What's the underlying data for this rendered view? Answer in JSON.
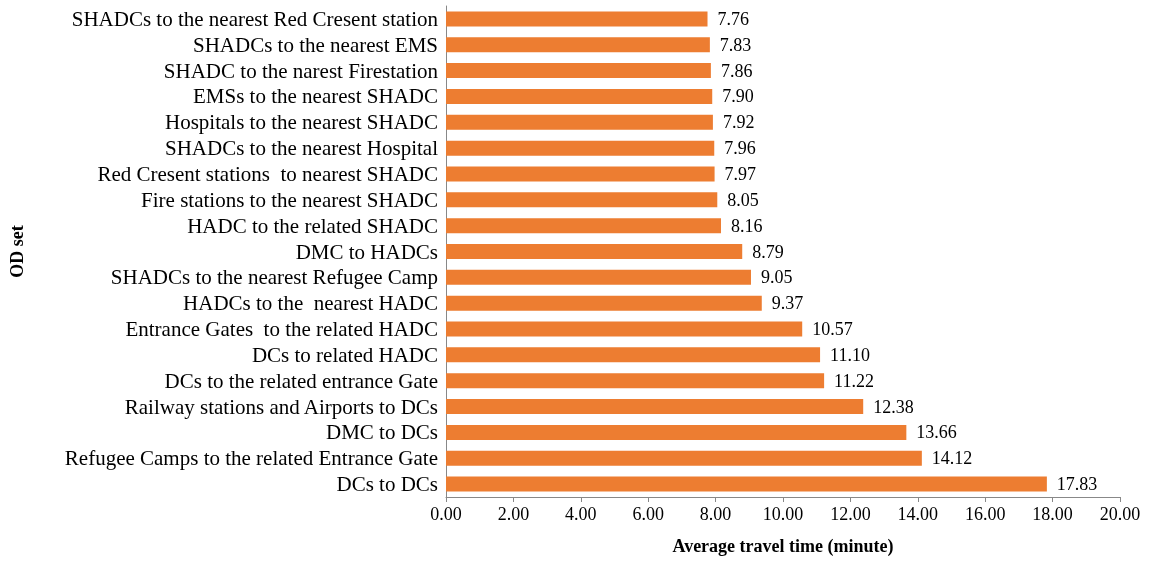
{
  "chart_data": {
    "type": "bar",
    "orientation": "horizontal",
    "xlabel": "Average travel time (minute)",
    "ylabel": "OD set",
    "categories": [
      "SHADCs to the nearest Red Cresent station",
      "SHADCs to the nearest EMS",
      "SHADC to the narest Firestation",
      "EMSs to the nearest SHADC",
      "Hospitals to the nearest SHADC",
      "SHADCs to the nearest Hospital",
      "Red Cresent stations  to nearest SHADC",
      "Fire stations to the nearest SHADC",
      "HADC to the related SHADC",
      "DMC to HADCs",
      "SHADCs to the nearest Refugee Camp",
      "HADCs to the  nearest HADC",
      "Entrance Gates  to the related HADC",
      "DCs to related HADC",
      "DCs to the related entrance Gate",
      "Railway stations and Airports to DCs",
      "DMC to DCs",
      "Refugee Camps to the related Entrance Gate",
      "DCs to DCs"
    ],
    "values": [
      7.76,
      7.83,
      7.86,
      7.9,
      7.92,
      7.96,
      7.97,
      8.05,
      8.16,
      8.79,
      9.05,
      9.37,
      10.57,
      11.1,
      11.22,
      12.38,
      13.66,
      14.12,
      17.83
    ],
    "value_labels": [
      "7.76",
      "7.83",
      "7.86",
      "7.90",
      "7.92",
      "7.96",
      "7.97",
      "8.05",
      "8.16",
      "8.79",
      "9.05",
      "9.37",
      "10.57",
      "11.10",
      "11.22",
      "12.38",
      "13.66",
      "14.12",
      "17.83"
    ],
    "color": "#ed7d31",
    "xlim": [
      0,
      20
    ],
    "xticks": [
      {
        "value": 0,
        "label": "0.00"
      },
      {
        "value": 2,
        "label": "2.00"
      },
      {
        "value": 4,
        "label": "4.00"
      },
      {
        "value": 6,
        "label": "6.00"
      },
      {
        "value": 8,
        "label": "8.00"
      },
      {
        "value": 10,
        "label": "10.00"
      },
      {
        "value": 12,
        "label": "12.00"
      },
      {
        "value": 14,
        "label": "14.00"
      },
      {
        "value": 16,
        "label": "16.00"
      },
      {
        "value": 18,
        "label": "18.00"
      },
      {
        "value": 20,
        "label": "20.00"
      }
    ],
    "grid": false
  }
}
